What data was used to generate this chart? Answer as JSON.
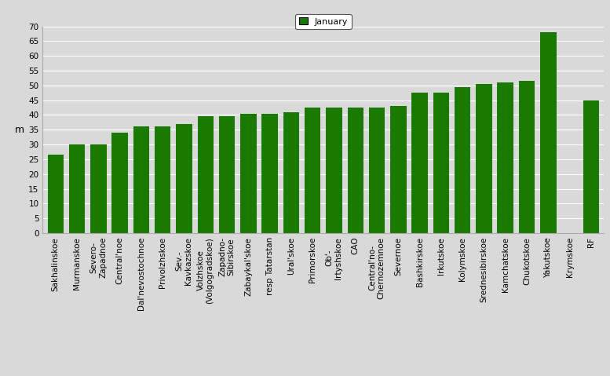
{
  "categories": [
    "Sakhalinskoe",
    "Murmanskoe",
    "Severo-\nZapadnoe",
    "Central'noe",
    "Dal'nevostochnoe",
    "Privolzhskoe",
    "Sev.-\nKavkazskoe",
    "Volzhskoe\n(Volgogradskoe)",
    "Zapadno-\nSibirskoe",
    "Zabaykal'skoe",
    "resp Tatarstan",
    "Ural'skoe",
    "Primorskoe",
    "Ob'-\nIrtyshskoe",
    "CAO",
    "Central'no-\nChernozemnoe",
    "Severnoe",
    "Bashkirskoe",
    "Irkutskoe",
    "Kolymskoe",
    "Srednesibirskoe",
    "Kamchatskoe",
    "Chukotskoe",
    "Yakutskoe",
    "Krymskoe",
    "RF"
  ],
  "values": [
    26.5,
    30.0,
    30.0,
    34.0,
    36.0,
    36.0,
    37.0,
    39.5,
    39.5,
    40.5,
    40.5,
    41.0,
    42.5,
    42.5,
    42.5,
    42.5,
    43.0,
    47.5,
    47.5,
    49.5,
    50.5,
    51.0,
    51.5,
    68.0,
    0.0,
    45.0
  ],
  "bar_color": "#1a7a00",
  "ylabel": "m",
  "ylim": [
    0,
    70
  ],
  "yticks": [
    0,
    5,
    10,
    15,
    20,
    25,
    30,
    35,
    40,
    45,
    50,
    55,
    60,
    65,
    70
  ],
  "legend_label": "January",
  "legend_color": "#1a7a00",
  "bg_color": "#d9d9d9",
  "grid_color": "#ffffff",
  "axis_fontsize": 9,
  "tick_fontsize": 7.5
}
